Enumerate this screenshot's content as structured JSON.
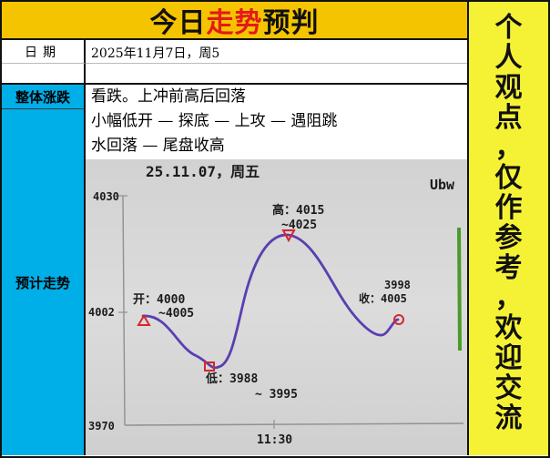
{
  "header": {
    "title_pre": "今日",
    "title_hl": "走势",
    "title_post": "预判"
  },
  "labels": {
    "date": "日期",
    "overall": "整体涨跌",
    "forecast": "预计走势"
  },
  "date_value": "2025年11月7日，周5",
  "trend_lines": [
    "看跌。上冲前高后回落",
    "小幅低开 — 探底 — 上攻 — 遇阻跳",
    "水回落 — 尾盘收高"
  ],
  "sidebar_text": [
    "个",
    "人",
    "观",
    "点",
    "，",
    "仅",
    "作",
    "参",
    "考",
    "，",
    "欢",
    "迎",
    "交",
    "流"
  ],
  "sketch": {
    "header": "25.11.07，周五",
    "corner": "Ubw",
    "y_top": "4030",
    "y_mid": "4002",
    "y_bottom": "3970",
    "x_mid": "11:30",
    "open_label": "开：4000",
    "open_range": "~4005",
    "low_label": "低：3988",
    "low_range": "~ 3995",
    "high_label": "高：4015",
    "high_range": "~4025",
    "close_label_1": "3998",
    "close_label_2": "收：4005",
    "colors": {
      "curve": "#5a3fb0",
      "marker": "#d8262a",
      "pencil": "#8f8f95",
      "green": "#4a9b2a"
    }
  }
}
